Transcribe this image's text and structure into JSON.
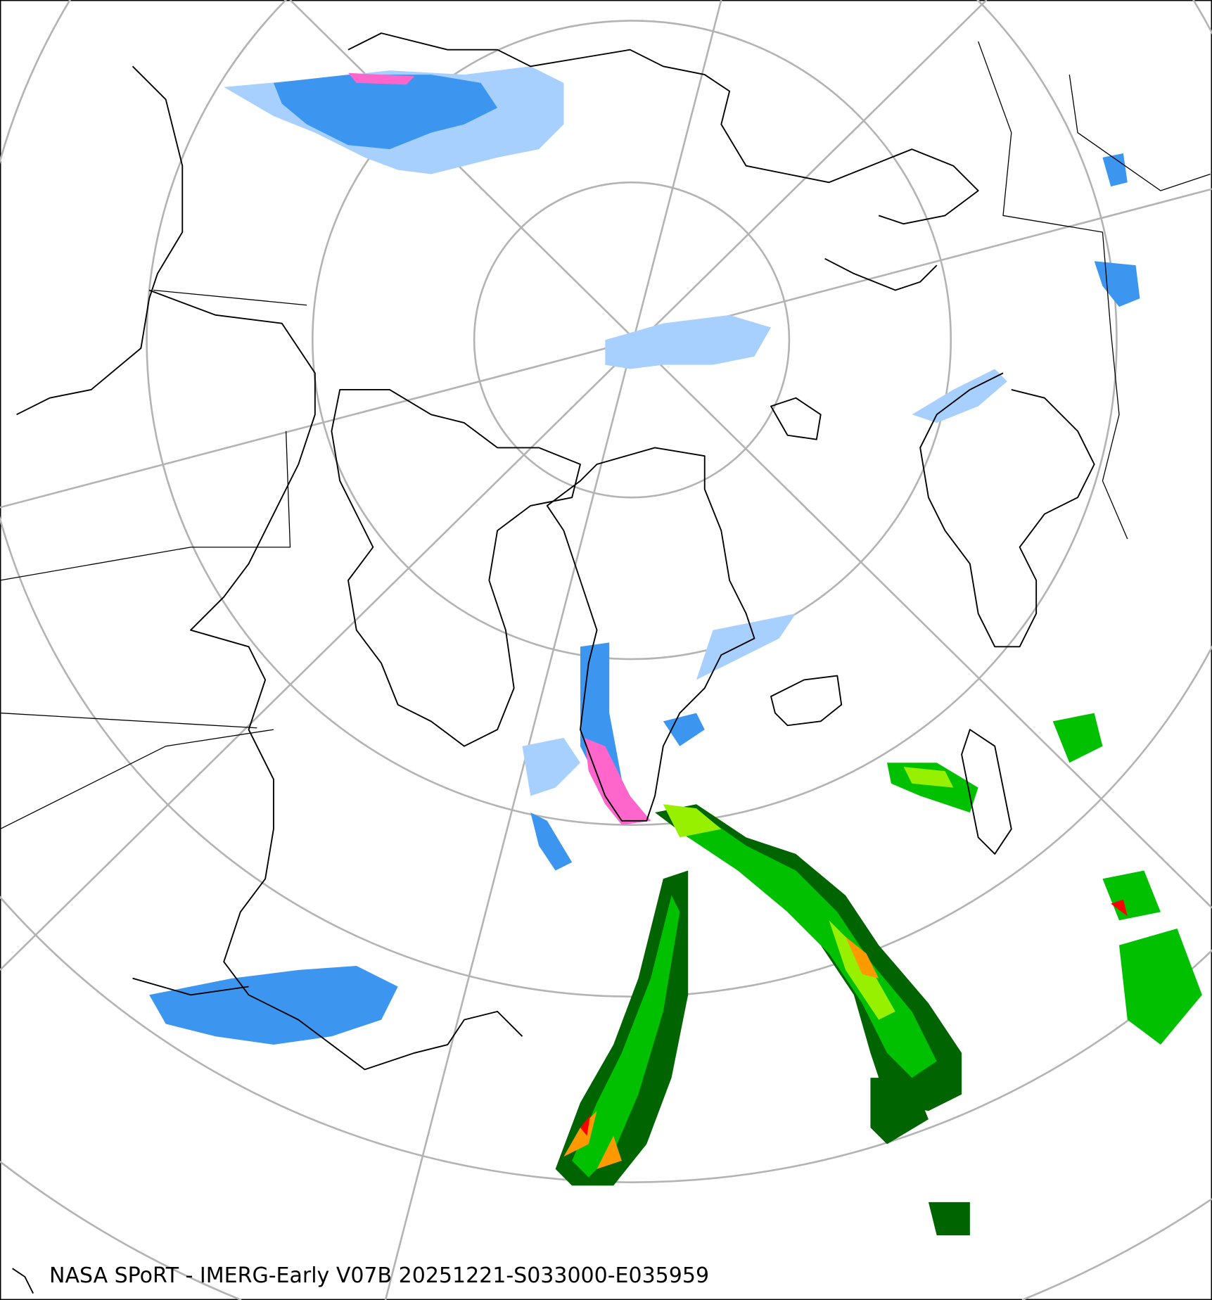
{
  "caption": "NASA SPoRT - IMERG-Early V07B 20251221-S033000-E035959",
  "map": {
    "projection": "north polar stereographic",
    "graticule_color": "#b3b3b3",
    "coastline_color": "#000000",
    "precipitation_colors": {
      "snow_light": "#a8d0ff",
      "snow_moderate": "#3c96f0",
      "snow_heavy": "#1e5fc8",
      "mixed": "#ff66cc",
      "rain_dark_green": "#006400",
      "rain_green": "#00c000",
      "rain_lime": "#96f000",
      "rain_yellow": "#ffff00",
      "rain_orange": "#ff9900",
      "rain_red": "#ff0000"
    }
  }
}
